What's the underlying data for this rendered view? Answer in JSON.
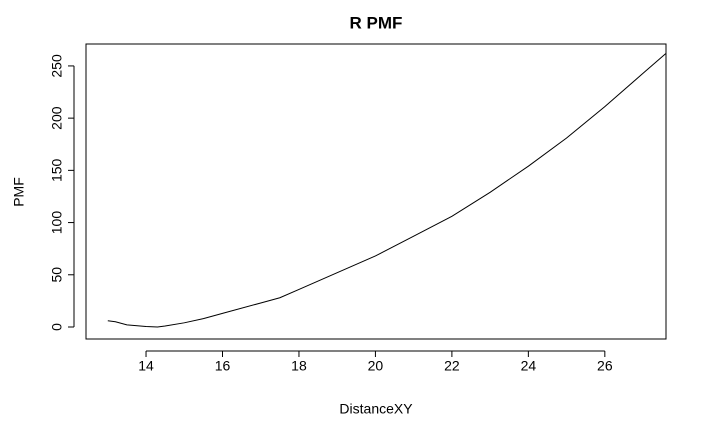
{
  "chart_data": {
    "type": "line",
    "title": "R PMF",
    "x_label": "DistanceXY",
    "y_label": "PMF",
    "x": [
      13.0,
      13.2,
      13.5,
      14.0,
      14.3,
      14.5,
      15.0,
      15.5,
      16.0,
      17.0,
      17.5,
      18.0,
      19.0,
      20.0,
      21.0,
      22.0,
      23.0,
      24.0,
      25.0,
      26.0,
      27.0,
      27.6
    ],
    "series": [
      {
        "name": "PMF",
        "color": "#000000",
        "values": [
          6,
          5,
          2,
          0.5,
          0,
          1,
          4,
          8,
          13,
          23,
          28,
          36,
          52,
          68,
          87,
          106,
          129,
          154,
          181,
          211,
          243,
          262
        ]
      }
    ],
    "xlim": [
      12.43,
      27.6
    ],
    "ylim": [
      -11.5,
      271
    ],
    "xticks": [
      14,
      16,
      18,
      20,
      22,
      24,
      26
    ],
    "yticks": [
      0,
      50,
      100,
      150,
      200,
      250
    ]
  }
}
